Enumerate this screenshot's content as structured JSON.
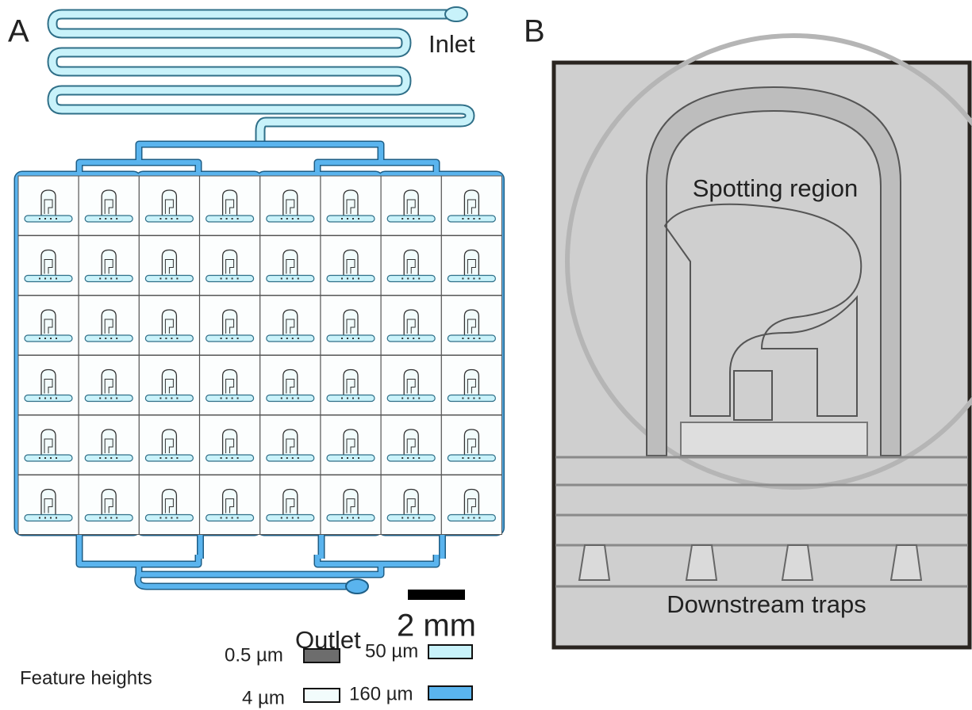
{
  "panel_a": {
    "label": "A",
    "inlet": "Inlet",
    "outlet": "Outlet",
    "scale_bar": "2 mm",
    "legend": {
      "title": "Feature heights",
      "items": [
        "0.5 µm",
        "50 µm",
        "4 µm",
        "160 µm"
      ]
    }
  },
  "panel_b": {
    "label": "B",
    "annotations": [
      "Spotting region",
      "Downstream traps"
    ]
  }
}
